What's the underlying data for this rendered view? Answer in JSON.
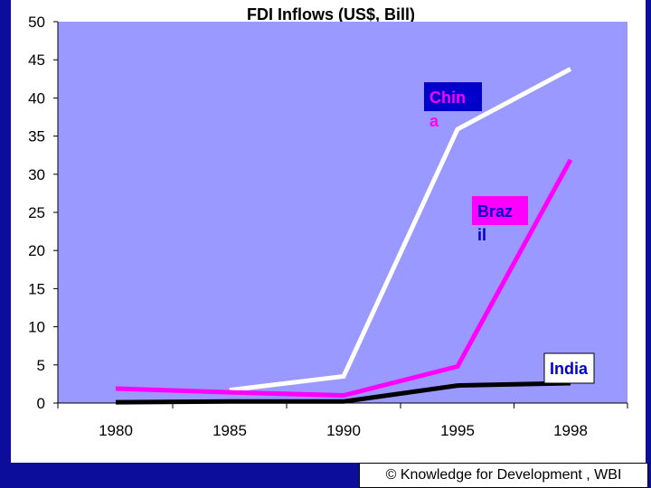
{
  "chart_data": {
    "type": "line",
    "title": "FDI Inflows (US$, Bill)",
    "xlabel": "",
    "ylabel": "",
    "categories": [
      "1980",
      "1985",
      "1990",
      "1995",
      "1998"
    ],
    "ylim": [
      0,
      50
    ],
    "yticks": [
      "0",
      "5",
      "10",
      "15",
      "20",
      "25",
      "30",
      "35",
      "40",
      "45",
      "50"
    ],
    "grid": false,
    "plot_background": "#9999ff",
    "series": [
      {
        "name": "China",
        "label_lines": [
          "Chin",
          "a"
        ],
        "color": "#ffffff",
        "label_box_color": "#0000cc",
        "label_text_color": "#ff00ff",
        "values": [
          null,
          1.7,
          3.5,
          35.9,
          43.8
        ]
      },
      {
        "name": "Brazil",
        "label_lines": [
          "Braz",
          "il"
        ],
        "color": "#ff00ff",
        "label_box_color": "#ff00ff",
        "label_text_color": "#0000cc",
        "values": [
          1.9,
          1.4,
          1.0,
          4.8,
          31.9
        ]
      },
      {
        "name": "India",
        "label_lines": [
          "India"
        ],
        "color": "#000000",
        "label_box_color": "#ffffff",
        "label_text_color": "#0000cc",
        "values": [
          0.1,
          0.2,
          0.2,
          2.3,
          2.6
        ]
      }
    ]
  },
  "footer": {
    "credit": "© Knowledge for Development , WBI"
  }
}
